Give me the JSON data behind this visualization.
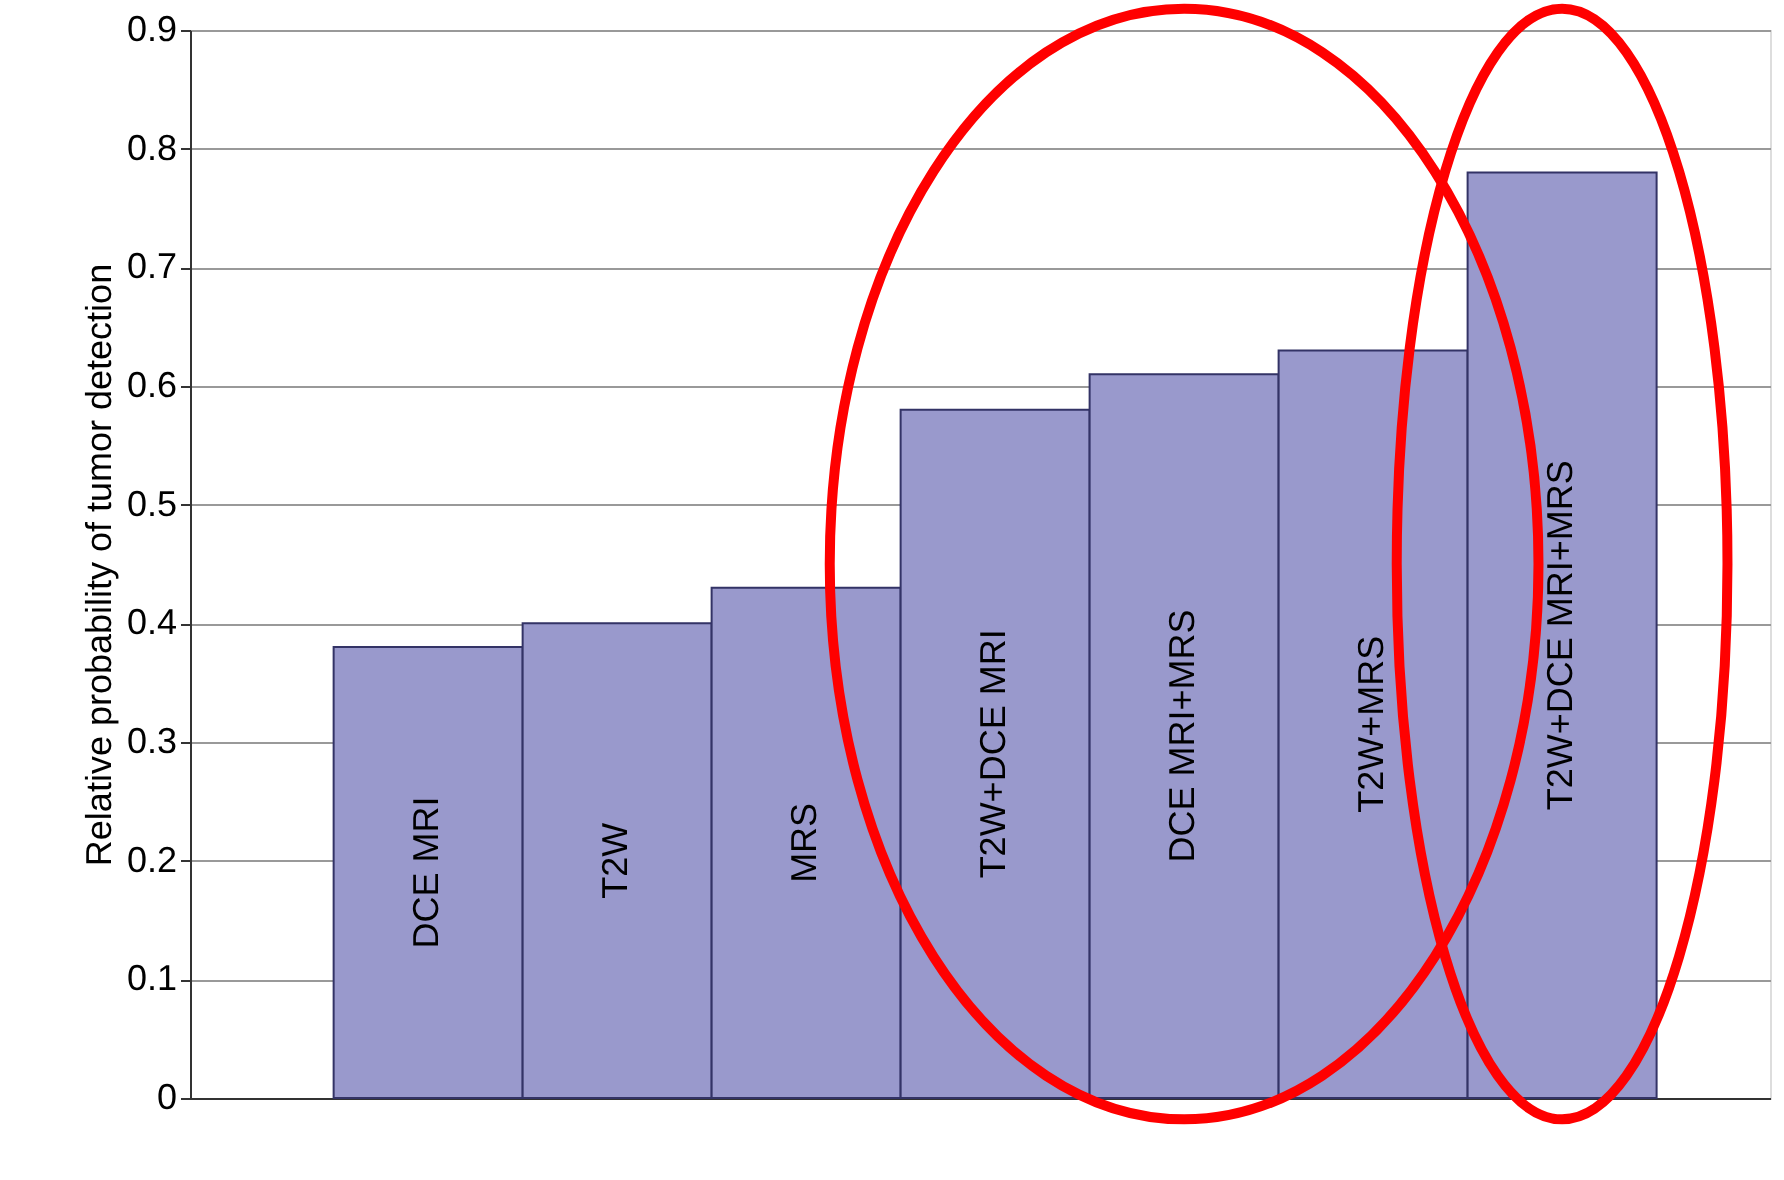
{
  "chart_data": {
    "type": "bar",
    "ylabel": "Relative probability of tumor detection",
    "categories": [
      "DCE MRI",
      "T2W",
      "MRS",
      "T2W+DCE MRI",
      "DCE MRI+MRS",
      "T2W+MRS",
      "T2W+DCE MRI+MRS"
    ],
    "values": [
      0.38,
      0.4,
      0.43,
      0.58,
      0.61,
      0.63,
      0.78
    ],
    "color": "#9999cc",
    "ylim": [
      0,
      0.9
    ],
    "yticks": [
      0,
      0.1,
      0.2,
      0.3,
      0.4,
      0.5,
      0.6,
      0.7,
      0.8,
      0.9
    ],
    "grid": "y"
  }
}
